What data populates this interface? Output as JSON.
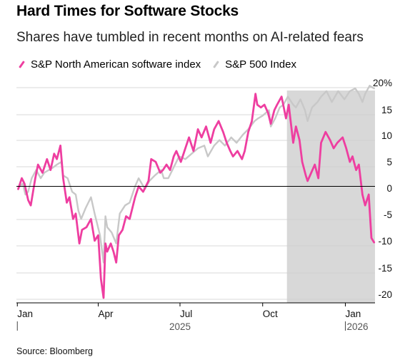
{
  "header": {
    "title": "Hard Times for Software Stocks",
    "subtitle": "Shares have tumbled in recent months on AI-related fears"
  },
  "footer": {
    "source": "Source: Bloomberg"
  },
  "colors": {
    "software": "#ee3ea0",
    "sp500": "#c8c8c8",
    "shade": "#d8d8d8",
    "zero_line": "#000000",
    "grid": "#cccccc"
  },
  "chart_data": {
    "type": "line",
    "title": "Hard Times for Software Stocks",
    "subtitle": "Shares have tumbled in recent months on AI-related fears",
    "xlabel": "",
    "ylabel": "",
    "x_ticks": [
      "Jan",
      "Apr",
      "Jul",
      "Oct",
      "Jan"
    ],
    "x_tick_dates": [
      "2025-01-01",
      "2025-04-01",
      "2025-07-01",
      "2025-10-01",
      "2026-01-01"
    ],
    "year_labels": [
      {
        "date": "2025-07-01",
        "label": "2025"
      },
      {
        "date": "2026-01-01",
        "label": "2026"
      }
    ],
    "y_ticks": [
      20,
      15,
      10,
      5,
      0,
      -5,
      -10,
      -15,
      -20
    ],
    "y_tick_labels": [
      "20%",
      "15",
      "10",
      "5",
      "0",
      "-5",
      "-10",
      "-15",
      "-20"
    ],
    "ylim": [
      -21,
      20
    ],
    "xlim": [
      "2024-12-31",
      "2026-02-03"
    ],
    "grid": true,
    "legend_position": "top-left",
    "shaded_region": {
      "start": "2025-10-28",
      "end": "2026-02-03"
    },
    "series": [
      {
        "name": "S&P North American software index",
        "color": "#ee3ea0",
        "points": [
          [
            "2025-01-02",
            -0.5
          ],
          [
            "2025-01-06",
            1.5
          ],
          [
            "2025-01-09",
            0.5
          ],
          [
            "2025-01-13",
            -2.5
          ],
          [
            "2025-01-16",
            -3.5
          ],
          [
            "2025-01-21",
            1.5
          ],
          [
            "2025-01-24",
            4
          ],
          [
            "2025-01-29",
            2.5
          ],
          [
            "2025-02-03",
            5
          ],
          [
            "2025-02-07",
            3
          ],
          [
            "2025-02-11",
            6
          ],
          [
            "2025-02-14",
            5
          ],
          [
            "2025-02-18",
            7.5
          ],
          [
            "2025-02-21",
            1.5
          ],
          [
            "2025-02-25",
            -3
          ],
          [
            "2025-02-28",
            -2
          ],
          [
            "2025-03-04",
            -6
          ],
          [
            "2025-03-07",
            -5
          ],
          [
            "2025-03-11",
            -10.5
          ],
          [
            "2025-03-14",
            -8
          ],
          [
            "2025-03-19",
            -7.5
          ],
          [
            "2025-03-24",
            -6
          ],
          [
            "2025-03-28",
            -10
          ],
          [
            "2025-04-01",
            -9
          ],
          [
            "2025-04-04",
            -17
          ],
          [
            "2025-04-07",
            -20.5
          ],
          [
            "2025-04-09",
            -10.5
          ],
          [
            "2025-04-11",
            -12
          ],
          [
            "2025-04-15",
            -10.5
          ],
          [
            "2025-04-18",
            -12
          ],
          [
            "2025-04-21",
            -14
          ],
          [
            "2025-04-24",
            -9
          ],
          [
            "2025-04-28",
            -8
          ],
          [
            "2025-05-02",
            -5.5
          ],
          [
            "2025-05-06",
            -6
          ],
          [
            "2025-05-12",
            -2
          ],
          [
            "2025-05-16",
            0
          ],
          [
            "2025-05-21",
            -1
          ],
          [
            "2025-05-27",
            1
          ],
          [
            "2025-05-30",
            5
          ],
          [
            "2025-06-04",
            4.5
          ],
          [
            "2025-06-09",
            2.5
          ],
          [
            "2025-06-12",
            3
          ],
          [
            "2025-06-16",
            4
          ],
          [
            "2025-06-20",
            3
          ],
          [
            "2025-06-24",
            5.5
          ],
          [
            "2025-06-27",
            6.5
          ],
          [
            "2025-07-02",
            4.5
          ],
          [
            "2025-07-07",
            7
          ],
          [
            "2025-07-11",
            9
          ],
          [
            "2025-07-16",
            6.5
          ],
          [
            "2025-07-21",
            10.5
          ],
          [
            "2025-07-25",
            9
          ],
          [
            "2025-07-30",
            11
          ],
          [
            "2025-08-04",
            8
          ],
          [
            "2025-08-08",
            10.5
          ],
          [
            "2025-08-13",
            12
          ],
          [
            "2025-08-18",
            10
          ],
          [
            "2025-08-22",
            8
          ],
          [
            "2025-08-26",
            6.5
          ],
          [
            "2025-08-29",
            5.5
          ],
          [
            "2025-09-03",
            6.5
          ],
          [
            "2025-09-08",
            5
          ],
          [
            "2025-09-11",
            6.5
          ],
          [
            "2025-09-15",
            10
          ],
          [
            "2025-09-19",
            12
          ],
          [
            "2025-09-23",
            17
          ],
          [
            "2025-09-25",
            15
          ],
          [
            "2025-09-29",
            14.5
          ],
          [
            "2025-10-03",
            15
          ],
          [
            "2025-10-07",
            13.5
          ],
          [
            "2025-10-10",
            11.5
          ],
          [
            "2025-10-14",
            14
          ],
          [
            "2025-10-17",
            15
          ],
          [
            "2025-10-22",
            16.5
          ],
          [
            "2025-10-27",
            12.5
          ],
          [
            "2025-10-30",
            15
          ],
          [
            "2025-11-04",
            8
          ],
          [
            "2025-11-07",
            11
          ],
          [
            "2025-11-11",
            8.5
          ],
          [
            "2025-11-14",
            4.5
          ],
          [
            "2025-11-18",
            2
          ],
          [
            "2025-11-20",
            1
          ],
          [
            "2025-11-24",
            2.5
          ],
          [
            "2025-11-28",
            4
          ],
          [
            "2025-12-02",
            1.5
          ],
          [
            "2025-12-05",
            8
          ],
          [
            "2025-12-10",
            10
          ],
          [
            "2025-12-15",
            8.5
          ],
          [
            "2025-12-19",
            7
          ],
          [
            "2025-12-23",
            8
          ],
          [
            "2025-12-29",
            9
          ],
          [
            "2026-01-02",
            7
          ],
          [
            "2026-01-06",
            4.5
          ],
          [
            "2026-01-09",
            5.5
          ],
          [
            "2026-01-13",
            3
          ],
          [
            "2026-01-16",
            4
          ],
          [
            "2026-01-20",
            -1.5
          ],
          [
            "2026-01-23",
            -3.5
          ],
          [
            "2026-01-27",
            -1.5
          ],
          [
            "2026-01-30",
            -9.5
          ],
          [
            "2026-02-02",
            -10.3
          ]
        ]
      },
      {
        "name": "S&P 500 Index",
        "color": "#c8c8c8",
        "points": [
          [
            "2025-01-02",
            -0.3
          ],
          [
            "2025-01-07",
            0.5
          ],
          [
            "2025-01-10",
            -1.5
          ],
          [
            "2025-01-13",
            -1
          ],
          [
            "2025-01-17",
            1.5
          ],
          [
            "2025-01-22",
            3
          ],
          [
            "2025-01-27",
            1.5
          ],
          [
            "2025-01-31",
            2.5
          ],
          [
            "2025-02-05",
            3
          ],
          [
            "2025-02-10",
            3.5
          ],
          [
            "2025-02-14",
            4
          ],
          [
            "2025-02-19",
            4.5
          ],
          [
            "2025-02-21",
            2
          ],
          [
            "2025-02-26",
            1.5
          ],
          [
            "2025-03-03",
            -1
          ],
          [
            "2025-03-07",
            -1.5
          ],
          [
            "2025-03-10",
            -4.5
          ],
          [
            "2025-03-13",
            -6
          ],
          [
            "2025-03-18",
            -4
          ],
          [
            "2025-03-24",
            -2
          ],
          [
            "2025-03-28",
            -5
          ],
          [
            "2025-04-03",
            -9
          ],
          [
            "2025-04-07",
            -14
          ],
          [
            "2025-04-09",
            -5.5
          ],
          [
            "2025-04-11",
            -7.5
          ],
          [
            "2025-04-16",
            -8.5
          ],
          [
            "2025-04-21",
            -10.5
          ],
          [
            "2025-04-25",
            -5
          ],
          [
            "2025-05-01",
            -3.5
          ],
          [
            "2025-05-06",
            -3
          ],
          [
            "2025-05-12",
            0
          ],
          [
            "2025-05-16",
            1.5
          ],
          [
            "2025-05-23",
            -0.5
          ],
          [
            "2025-05-28",
            1
          ],
          [
            "2025-06-03",
            2
          ],
          [
            "2025-06-10",
            3
          ],
          [
            "2025-06-13",
            1.5
          ],
          [
            "2025-06-18",
            1.5
          ],
          [
            "2025-06-24",
            3.5
          ],
          [
            "2025-06-30",
            5.5
          ],
          [
            "2025-07-07",
            5
          ],
          [
            "2025-07-14",
            6
          ],
          [
            "2025-07-21",
            7
          ],
          [
            "2025-07-28",
            7.5
          ],
          [
            "2025-08-01",
            5.5
          ],
          [
            "2025-08-08",
            7.5
          ],
          [
            "2025-08-14",
            8.5
          ],
          [
            "2025-08-20",
            7.5
          ],
          [
            "2025-08-27",
            9
          ],
          [
            "2025-09-02",
            8
          ],
          [
            "2025-09-09",
            9.5
          ],
          [
            "2025-09-15",
            10.5
          ],
          [
            "2025-09-22",
            12
          ],
          [
            "2025-09-26",
            12.5
          ],
          [
            "2025-10-01",
            13
          ],
          [
            "2025-10-08",
            14
          ],
          [
            "2025-10-10",
            11
          ],
          [
            "2025-10-15",
            12.5
          ],
          [
            "2025-10-20",
            14.5
          ],
          [
            "2025-10-24",
            15
          ],
          [
            "2025-10-29",
            16.5
          ],
          [
            "2025-11-04",
            15
          ],
          [
            "2025-11-07",
            14.5
          ],
          [
            "2025-11-12",
            16
          ],
          [
            "2025-11-17",
            14
          ],
          [
            "2025-11-20",
            12
          ],
          [
            "2025-11-25",
            14.5
          ],
          [
            "2025-12-01",
            15.5
          ],
          [
            "2025-12-05",
            16.5
          ],
          [
            "2025-12-11",
            17.5
          ],
          [
            "2025-12-17",
            15.5
          ],
          [
            "2025-12-24",
            17.5
          ],
          [
            "2025-12-31",
            16
          ],
          [
            "2026-01-06",
            17.5
          ],
          [
            "2026-01-12",
            18
          ],
          [
            "2026-01-16",
            17
          ],
          [
            "2026-01-20",
            15.5
          ],
          [
            "2026-01-23",
            17
          ],
          [
            "2026-01-28",
            18.5
          ],
          [
            "2026-02-02",
            18
          ]
        ]
      }
    ]
  }
}
